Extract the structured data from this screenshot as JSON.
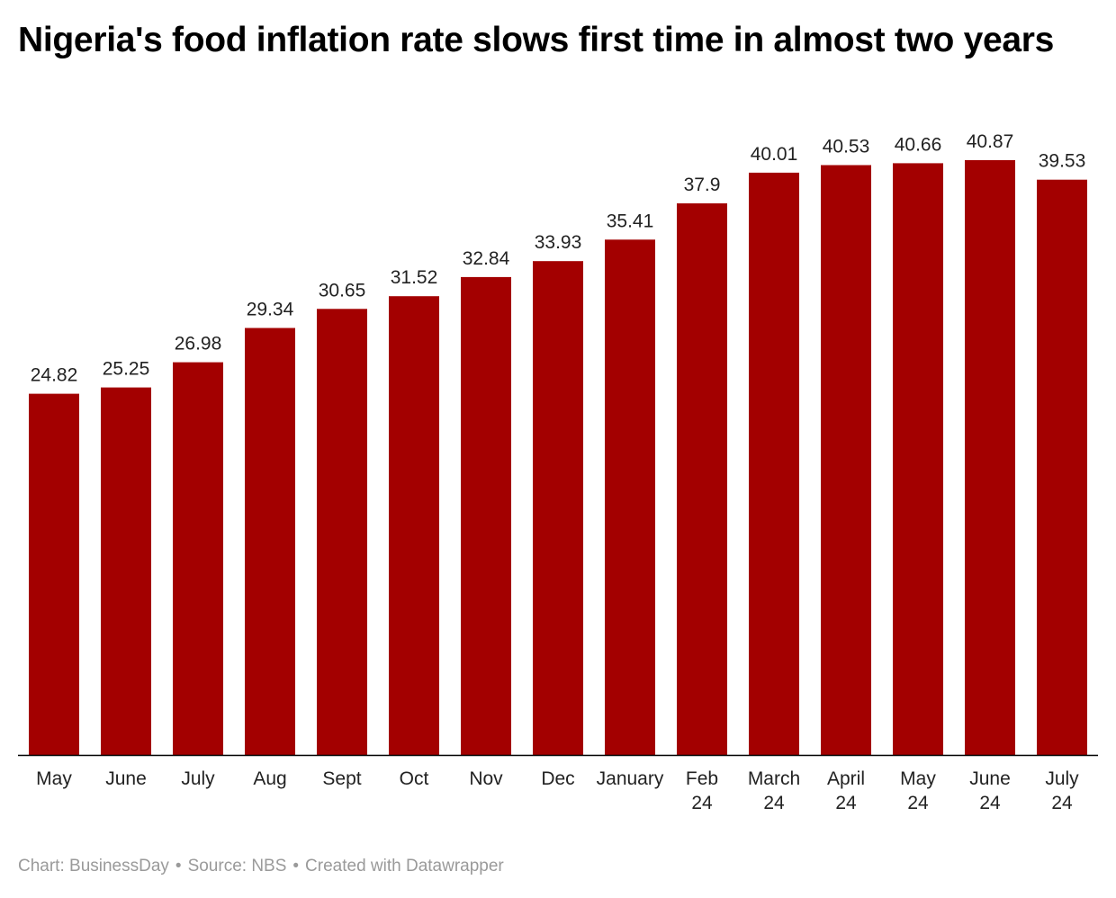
{
  "title": "Nigeria's food inflation rate slows first time in almost two years",
  "footer": {
    "chart_credit": "Chart: BusinessDay",
    "source": "Source: NBS",
    "created_with": "Created with Datawrapper",
    "separator": "•"
  },
  "colors": {
    "bar": "#a30000",
    "axis": "#000000",
    "label": "#222222",
    "footer": "#9a9a9a"
  },
  "chart_data": {
    "type": "bar",
    "title": "Nigeria's food inflation rate slows first time in almost two years",
    "categories": [
      [
        "May"
      ],
      [
        "June"
      ],
      [
        "July"
      ],
      [
        "Aug"
      ],
      [
        "Sept"
      ],
      [
        "Oct"
      ],
      [
        "Nov"
      ],
      [
        "Dec"
      ],
      [
        "January"
      ],
      [
        "Feb",
        "24"
      ],
      [
        "March",
        "24"
      ],
      [
        "April",
        "24"
      ],
      [
        "May",
        "24"
      ],
      [
        "June",
        "24"
      ],
      [
        "July",
        "24"
      ]
    ],
    "values": [
      24.82,
      25.25,
      26.98,
      29.34,
      30.65,
      31.52,
      32.84,
      33.93,
      35.41,
      37.9,
      40.01,
      40.53,
      40.66,
      40.87,
      39.53
    ],
    "data_labels": [
      "24.82",
      "25.25",
      "26.98",
      "29.34",
      "30.65",
      "31.52",
      "32.84",
      "33.93",
      "35.41",
      "37.9",
      "40.01",
      "40.53",
      "40.66",
      "40.87",
      "39.53"
    ],
    "xlabel": "",
    "ylabel": "",
    "ylim": [
      0,
      40.87
    ],
    "grid": false,
    "legend": "none"
  }
}
